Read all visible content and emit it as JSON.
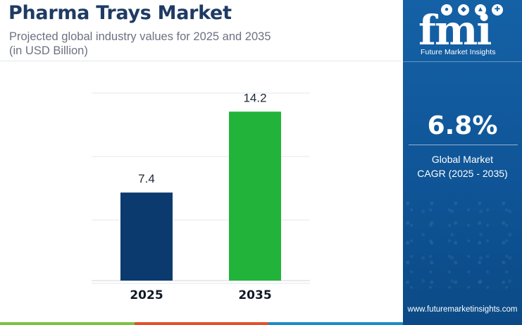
{
  "header": {
    "title": "Pharma Trays Market",
    "subtitle": "Projected global industry values for 2025 and 2035\n(in USD Billion)"
  },
  "brand": {
    "logo_text": "fmi",
    "tagline": "Future Market Insights",
    "website": "www.futuremarketinsights.com"
  },
  "cagr": {
    "value": "6.8%",
    "label": "Global Market\nCAGR (2025 - 2035)"
  },
  "colors": {
    "bar_2025": "#0b3a6e",
    "bar_2035": "#22b33a",
    "sidebar": "#1561a6",
    "strip": [
      "#7cc242",
      "#e2502c",
      "#1b8cc9"
    ]
  },
  "chart_data": {
    "type": "bar",
    "categories": [
      "2025",
      "2035"
    ],
    "values": [
      7.4,
      14.2
    ],
    "value_labels": [
      "7.4",
      "14.2"
    ],
    "title": "Pharma Trays Market",
    "xlabel": "",
    "ylabel": "",
    "ylim": [
      0,
      16
    ],
    "grid": true,
    "legend": "none"
  }
}
